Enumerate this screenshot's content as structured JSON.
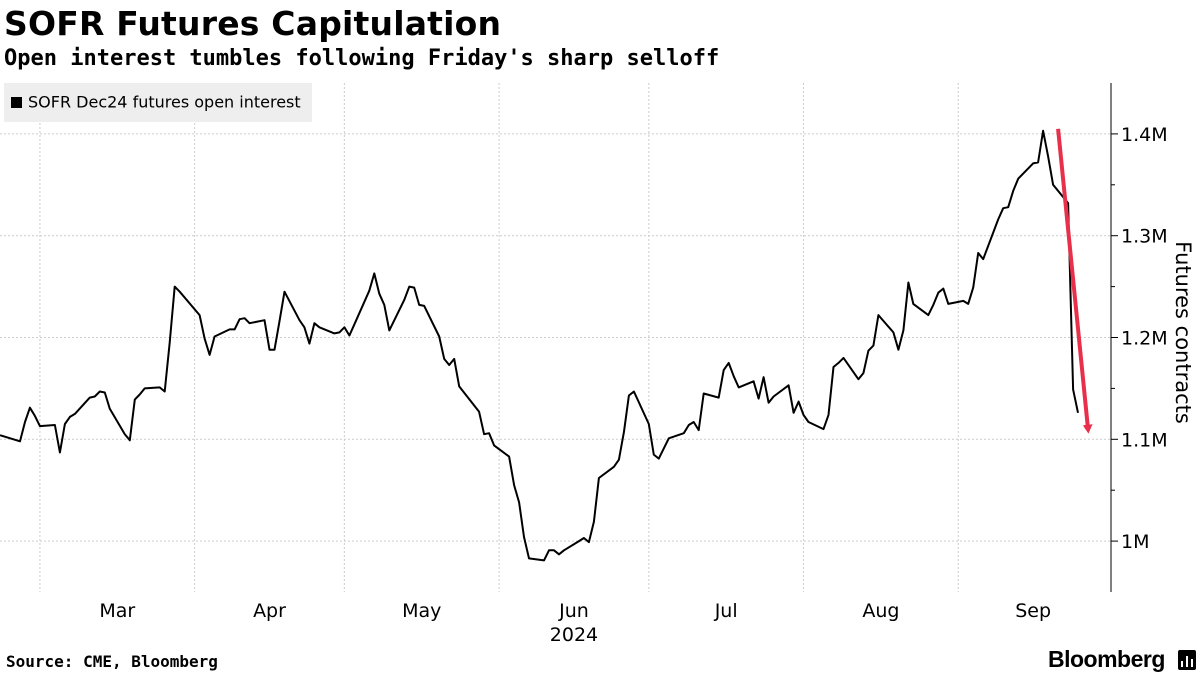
{
  "header": {
    "title": "SOFR Futures Capitulation",
    "subtitle": "Open interest tumbles following Friday's sharp selloff"
  },
  "footer": {
    "source": "Source: CME, Bloomberg",
    "brand": "Bloomberg"
  },
  "colors": {
    "line": "#000000",
    "arrow": "#e8304a",
    "grid": "#cccccc",
    "legend_bg": "#eeeeee"
  },
  "chart_data": {
    "type": "line",
    "title": "SOFR Futures Capitulation",
    "subtitle": "Open interest tumbles following Friday's sharp selloff",
    "ylabel": "Futures contracts",
    "x_year_label": "2024",
    "ylim": [
      950000,
      1450000
    ],
    "y_ticks": [
      1000000,
      1100000,
      1200000,
      1300000,
      1400000
    ],
    "y_tick_labels": [
      "1M",
      "1.1M",
      "1.2M",
      "1.3M",
      "1.4M"
    ],
    "x_start": "2024-02-22",
    "x_end": "2024-09-30",
    "month_ticks": [
      {
        "label": "Mar",
        "date": "2024-03-01"
      },
      {
        "label": "Apr",
        "date": "2024-04-01"
      },
      {
        "label": "May",
        "date": "2024-05-01"
      },
      {
        "label": "Jun",
        "date": "2024-06-01"
      },
      {
        "label": "Jul",
        "date": "2024-07-01"
      },
      {
        "label": "Aug",
        "date": "2024-08-01"
      },
      {
        "label": "Sep",
        "date": "2024-09-01"
      }
    ],
    "legend": "top-left",
    "grid": true,
    "series": [
      {
        "name": "SOFR Dec24 futures open interest",
        "points": [
          [
            "2024-02-22",
            1104000
          ],
          [
            "2024-02-26",
            1098000
          ],
          [
            "2024-02-27",
            1117000
          ],
          [
            "2024-02-28",
            1131000
          ],
          [
            "2024-02-29",
            1123000
          ],
          [
            "2024-03-01",
            1113000
          ],
          [
            "2024-03-04",
            1114000
          ],
          [
            "2024-03-05",
            1087000
          ],
          [
            "2024-03-06",
            1115000
          ],
          [
            "2024-03-07",
            1122000
          ],
          [
            "2024-03-08",
            1125000
          ],
          [
            "2024-03-11",
            1141000
          ],
          [
            "2024-03-12",
            1142000
          ],
          [
            "2024-03-13",
            1147000
          ],
          [
            "2024-03-14",
            1146000
          ],
          [
            "2024-03-15",
            1130000
          ],
          [
            "2024-03-18",
            1105000
          ],
          [
            "2024-03-19",
            1099000
          ],
          [
            "2024-03-20",
            1139000
          ],
          [
            "2024-03-21",
            1144000
          ],
          [
            "2024-03-22",
            1150000
          ],
          [
            "2024-03-25",
            1151000
          ],
          [
            "2024-03-26",
            1147000
          ],
          [
            "2024-03-27",
            1195000
          ],
          [
            "2024-03-28",
            1250000
          ],
          [
            "2024-03-29",
            1245000
          ],
          [
            "2024-04-02",
            1222000
          ],
          [
            "2024-04-03",
            1199000
          ],
          [
            "2024-04-04",
            1183000
          ],
          [
            "2024-04-05",
            1201000
          ],
          [
            "2024-04-08",
            1208000
          ],
          [
            "2024-04-09",
            1208000
          ],
          [
            "2024-04-10",
            1218000
          ],
          [
            "2024-04-11",
            1219000
          ],
          [
            "2024-04-12",
            1214000
          ],
          [
            "2024-04-15",
            1217000
          ],
          [
            "2024-04-16",
            1188000
          ],
          [
            "2024-04-17",
            1188000
          ],
          [
            "2024-04-18",
            1216000
          ],
          [
            "2024-04-19",
            1245000
          ],
          [
            "2024-04-22",
            1217000
          ],
          [
            "2024-04-23",
            1210000
          ],
          [
            "2024-04-24",
            1194000
          ],
          [
            "2024-04-25",
            1214000
          ],
          [
            "2024-04-26",
            1210000
          ],
          [
            "2024-04-29",
            1204000
          ],
          [
            "2024-04-30",
            1205000
          ],
          [
            "2024-05-01",
            1210000
          ],
          [
            "2024-05-02",
            1202000
          ],
          [
            "2024-05-03",
            1213000
          ],
          [
            "2024-05-06",
            1246000
          ],
          [
            "2024-05-07",
            1263000
          ],
          [
            "2024-05-08",
            1243000
          ],
          [
            "2024-05-09",
            1232000
          ],
          [
            "2024-05-10",
            1207000
          ],
          [
            "2024-05-13",
            1237000
          ],
          [
            "2024-05-14",
            1250000
          ],
          [
            "2024-05-15",
            1249000
          ],
          [
            "2024-05-16",
            1232000
          ],
          [
            "2024-05-17",
            1231000
          ],
          [
            "2024-05-20",
            1201000
          ],
          [
            "2024-05-21",
            1179000
          ],
          [
            "2024-05-22",
            1173000
          ],
          [
            "2024-05-23",
            1179000
          ],
          [
            "2024-05-24",
            1152000
          ],
          [
            "2024-05-28",
            1127000
          ],
          [
            "2024-05-29",
            1105000
          ],
          [
            "2024-05-30",
            1106000
          ],
          [
            "2024-05-31",
            1094000
          ],
          [
            "2024-06-03",
            1083000
          ],
          [
            "2024-06-04",
            1055000
          ],
          [
            "2024-06-05",
            1038000
          ],
          [
            "2024-06-06",
            1004000
          ],
          [
            "2024-06-07",
            983000
          ],
          [
            "2024-06-10",
            981000
          ],
          [
            "2024-06-11",
            991000
          ],
          [
            "2024-06-12",
            991000
          ],
          [
            "2024-06-13",
            987000
          ],
          [
            "2024-06-14",
            991000
          ],
          [
            "2024-06-17",
            1000000
          ],
          [
            "2024-06-18",
            1003000
          ],
          [
            "2024-06-19",
            999000
          ],
          [
            "2024-06-20",
            1019000
          ],
          [
            "2024-06-21",
            1062000
          ],
          [
            "2024-06-24",
            1073000
          ],
          [
            "2024-06-25",
            1080000
          ],
          [
            "2024-06-26",
            1107000
          ],
          [
            "2024-06-27",
            1143000
          ],
          [
            "2024-06-28",
            1147000
          ],
          [
            "2024-07-01",
            1115000
          ],
          [
            "2024-07-02",
            1085000
          ],
          [
            "2024-07-03",
            1081000
          ],
          [
            "2024-07-05",
            1101000
          ],
          [
            "2024-07-08",
            1106000
          ],
          [
            "2024-07-09",
            1114000
          ],
          [
            "2024-07-10",
            1117000
          ],
          [
            "2024-07-11",
            1109000
          ],
          [
            "2024-07-12",
            1145000
          ],
          [
            "2024-07-15",
            1141000
          ],
          [
            "2024-07-16",
            1168000
          ],
          [
            "2024-07-17",
            1175000
          ],
          [
            "2024-07-18",
            1162000
          ],
          [
            "2024-07-19",
            1151000
          ],
          [
            "2024-07-22",
            1157000
          ],
          [
            "2024-07-23",
            1140000
          ],
          [
            "2024-07-24",
            1161000
          ],
          [
            "2024-07-25",
            1136000
          ],
          [
            "2024-07-26",
            1142000
          ],
          [
            "2024-07-29",
            1153000
          ],
          [
            "2024-07-30",
            1126000
          ],
          [
            "2024-07-31",
            1137000
          ],
          [
            "2024-08-01",
            1124000
          ],
          [
            "2024-08-02",
            1117000
          ],
          [
            "2024-08-05",
            1110000
          ],
          [
            "2024-08-06",
            1124000
          ],
          [
            "2024-08-07",
            1171000
          ],
          [
            "2024-08-08",
            1175000
          ],
          [
            "2024-08-09",
            1180000
          ],
          [
            "2024-08-12",
            1159000
          ],
          [
            "2024-08-13",
            1165000
          ],
          [
            "2024-08-14",
            1187000
          ],
          [
            "2024-08-15",
            1192000
          ],
          [
            "2024-08-16",
            1222000
          ],
          [
            "2024-08-19",
            1205000
          ],
          [
            "2024-08-20",
            1188000
          ],
          [
            "2024-08-21",
            1207000
          ],
          [
            "2024-08-22",
            1254000
          ],
          [
            "2024-08-23",
            1233000
          ],
          [
            "2024-08-26",
            1222000
          ],
          [
            "2024-08-27",
            1232000
          ],
          [
            "2024-08-28",
            1244000
          ],
          [
            "2024-08-29",
            1248000
          ],
          [
            "2024-08-30",
            1233000
          ],
          [
            "2024-09-02",
            1236000
          ],
          [
            "2024-09-03",
            1233000
          ],
          [
            "2024-09-04",
            1249000
          ],
          [
            "2024-09-05",
            1283000
          ],
          [
            "2024-09-06",
            1277000
          ],
          [
            "2024-09-09",
            1316000
          ],
          [
            "2024-09-10",
            1327000
          ],
          [
            "2024-09-11",
            1328000
          ],
          [
            "2024-09-12",
            1344000
          ],
          [
            "2024-09-13",
            1356000
          ],
          [
            "2024-09-16",
            1371000
          ],
          [
            "2024-09-17",
            1372000
          ],
          [
            "2024-09-18",
            1403000
          ],
          [
            "2024-09-19",
            1378000
          ],
          [
            "2024-09-20",
            1350000
          ],
          [
            "2024-09-23",
            1332000
          ],
          [
            "2024-09-24",
            1149000
          ],
          [
            "2024-09-25",
            1126000
          ]
        ]
      }
    ],
    "annotations": [
      {
        "type": "arrow",
        "from": [
          "2024-09-21",
          1405000
        ],
        "to": [
          "2024-09-27",
          1110000
        ],
        "meaning": "sharp decline"
      }
    ]
  }
}
